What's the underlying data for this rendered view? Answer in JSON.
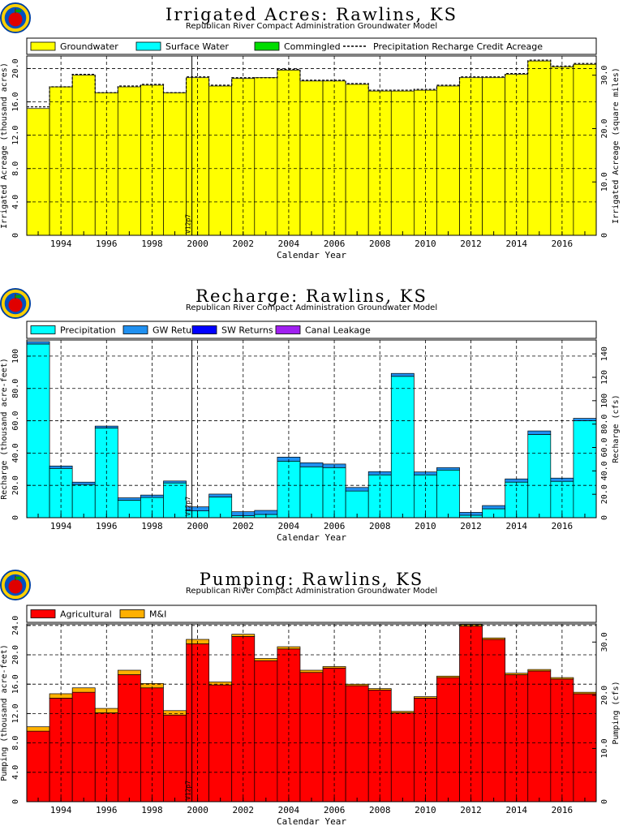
{
  "colors": {
    "groundwater": "#ffff00",
    "surface_water": "#00ffff",
    "commingled": "#00dd00",
    "precipitation": "#00ffff",
    "gw_returns": "#2090f0",
    "sw_returns": "#0000ff",
    "canal_leakage": "#a020f0",
    "agricultural": "#ff0000",
    "mi": "#ffb000"
  },
  "icons": {
    "logo": "apple-logo-icon"
  },
  "chart_data": [
    {
      "type": "bar",
      "title": "Irrigated Acres: Rawlins, KS",
      "subtitle": "Republican River Compact Administration Groundwater Model",
      "xlabel": "Calendar Year",
      "ylabel": "Irrigated Acreage (thousand acres)",
      "y2label": "Irrigated Acreage (square miles)",
      "marker_label": "V12p7",
      "x": [
        1993,
        1994,
        1995,
        1996,
        1997,
        1998,
        1999,
        2000,
        2001,
        2002,
        2003,
        2004,
        2005,
        2006,
        2007,
        2008,
        2009,
        2010,
        2011,
        2012,
        2013,
        2014,
        2015,
        2016,
        2017
      ],
      "xticks": [
        "1994",
        "1996",
        "1998",
        "2000",
        "2002",
        "2004",
        "2006",
        "2008",
        "2010",
        "2012",
        "2014",
        "2016"
      ],
      "ylim": [
        0,
        21.5
      ],
      "yticks": [
        "0",
        "4.0",
        "8.0",
        "12.0",
        "16.0",
        "20.0"
      ],
      "y2ticks": [
        "0",
        "10.0",
        "20.0",
        "30.0"
      ],
      "legend": [
        "Groundwater",
        "Surface Water",
        "Commingled",
        "Precipitation Recharge Credit Acreage"
      ],
      "series": [
        {
          "name": "Groundwater",
          "values": [
            15.2,
            17.8,
            19.2,
            17.1,
            17.8,
            18.0,
            17.1,
            18.9,
            17.9,
            18.8,
            18.9,
            19.8,
            18.5,
            18.5,
            18.1,
            17.3,
            17.3,
            17.4,
            17.9,
            18.9,
            18.9,
            19.3,
            20.9,
            20.2,
            20.5
          ]
        },
        {
          "name": "Surface Water",
          "values": [
            0,
            0,
            0,
            0,
            0,
            0,
            0,
            0,
            0,
            0,
            0,
            0,
            0,
            0,
            0,
            0,
            0,
            0,
            0,
            0,
            0,
            0,
            0,
            0,
            0
          ]
        },
        {
          "name": "Commingled",
          "values": [
            0,
            0,
            0,
            0,
            0,
            0,
            0,
            0,
            0,
            0,
            0,
            0,
            0,
            0,
            0,
            0,
            0,
            0,
            0,
            0,
            0,
            0,
            0,
            0,
            0
          ]
        }
      ],
      "line": {
        "name": "Precipitation Recharge Credit Acreage",
        "values": [
          15.4,
          17.8,
          19.3,
          17.1,
          17.9,
          18.1,
          17.1,
          19.0,
          18.0,
          18.9,
          18.9,
          19.9,
          18.6,
          18.6,
          18.2,
          17.4,
          17.4,
          17.5,
          18.0,
          19.0,
          19.0,
          19.4,
          21.0,
          20.3,
          20.6
        ]
      }
    },
    {
      "type": "bar",
      "title": "Recharge: Rawlins, KS",
      "subtitle": "Republican River Compact Administration Groundwater Model",
      "xlabel": "Calendar Year",
      "ylabel": "Recharge (thousand acre-feet)",
      "y2label": "Recharge (cfs)",
      "marker_label": "V12p7",
      "x": [
        1993,
        1994,
        1995,
        1996,
        1997,
        1998,
        1999,
        2000,
        2001,
        2002,
        2003,
        2004,
        2005,
        2006,
        2007,
        2008,
        2009,
        2010,
        2011,
        2012,
        2013,
        2014,
        2015,
        2016,
        2017
      ],
      "xticks": [
        "1994",
        "1996",
        "1998",
        "2000",
        "2002",
        "2004",
        "2006",
        "2008",
        "2010",
        "2012",
        "2014",
        "2016"
      ],
      "ylim": [
        0,
        110
      ],
      "yticks": [
        "0",
        "20.0",
        "40.0",
        "60.0",
        "80.0",
        "100"
      ],
      "y2ticks": [
        "0",
        "20.0",
        "40.0",
        "60.0",
        "80.0",
        "100",
        "120",
        "140"
      ],
      "legend": [
        "Precipitation",
        "GW Returns",
        "SW Returns",
        "Canal Leakage"
      ],
      "series": [
        {
          "name": "Precipitation",
          "values": [
            107.5,
            30.5,
            20.5,
            55.5,
            10.8,
            12.5,
            21.5,
            4.2,
            12.8,
            1.2,
            2.0,
            35.0,
            31.5,
            31.0,
            16.5,
            26.5,
            87.5,
            26.5,
            29.5,
            1.5,
            5.5,
            22.0,
            51.5,
            22.5,
            60.0
          ]
        },
        {
          "name": "GW Returns",
          "values": [
            1.5,
            1.5,
            1.5,
            1.2,
            1.5,
            1.5,
            1.2,
            2.5,
            1.8,
            2.5,
            2.5,
            2.5,
            2.5,
            2.2,
            2.2,
            2.0,
            1.8,
            1.8,
            1.5,
            1.8,
            2.0,
            2.0,
            2.2,
            2.0,
            1.5
          ]
        },
        {
          "name": "SW Returns",
          "values": [
            0,
            0,
            0,
            0,
            0,
            0,
            0,
            0,
            0,
            0,
            0,
            0,
            0,
            0,
            0,
            0,
            0,
            0,
            0,
            0,
            0,
            0,
            0,
            0,
            0
          ]
        },
        {
          "name": "Canal Leakage",
          "values": [
            0,
            0,
            0,
            0,
            0,
            0,
            0,
            0,
            0,
            0,
            0,
            0,
            0,
            0,
            0,
            0,
            0,
            0,
            0,
            0,
            0,
            0,
            0,
            0,
            0
          ]
        }
      ]
    },
    {
      "type": "bar",
      "title": "Pumping: Rawlins, KS",
      "subtitle": "Republican River Compact Administration Groundwater Model",
      "xlabel": "Calendar Year",
      "ylabel": "Pumping (thousand acre-feet)",
      "y2label": "Pumping (cfs)",
      "marker_label": "V12p7",
      "x": [
        1993,
        1994,
        1995,
        1996,
        1997,
        1998,
        1999,
        2000,
        2001,
        2002,
        2003,
        2004,
        2005,
        2006,
        2007,
        2008,
        2009,
        2010,
        2011,
        2012,
        2013,
        2014,
        2015,
        2016,
        2017
      ],
      "xticks": [
        "1994",
        "1996",
        "1998",
        "2000",
        "2002",
        "2004",
        "2006",
        "2008",
        "2010",
        "2012",
        "2014",
        "2016"
      ],
      "ylim": [
        0,
        24.2
      ],
      "yticks": [
        "0",
        "4.0",
        "8.0",
        "12.0",
        "16.0",
        "20.0",
        "24.0"
      ],
      "y2ticks": [
        "0",
        "10.0",
        "20.0",
        "30.0"
      ],
      "legend": [
        "Agricultural",
        "M&I"
      ],
      "series": [
        {
          "name": "Agricultural",
          "values": [
            9.6,
            14.1,
            14.9,
            12.1,
            17.3,
            15.5,
            11.8,
            21.5,
            15.9,
            22.5,
            19.2,
            20.8,
            17.6,
            18.2,
            15.8,
            15.2,
            12.1,
            14.1,
            16.9,
            23.9,
            22.1,
            17.3,
            17.8,
            16.7,
            14.7
          ]
        },
        {
          "name": "M&I",
          "values": [
            0.6,
            0.6,
            0.6,
            0.6,
            0.6,
            0.6,
            0.6,
            0.6,
            0.4,
            0.3,
            0.3,
            0.3,
            0.3,
            0.2,
            0.2,
            0.2,
            0.2,
            0.2,
            0.2,
            0.2,
            0.2,
            0.2,
            0.2,
            0.2,
            0.2
          ]
        }
      ]
    }
  ]
}
